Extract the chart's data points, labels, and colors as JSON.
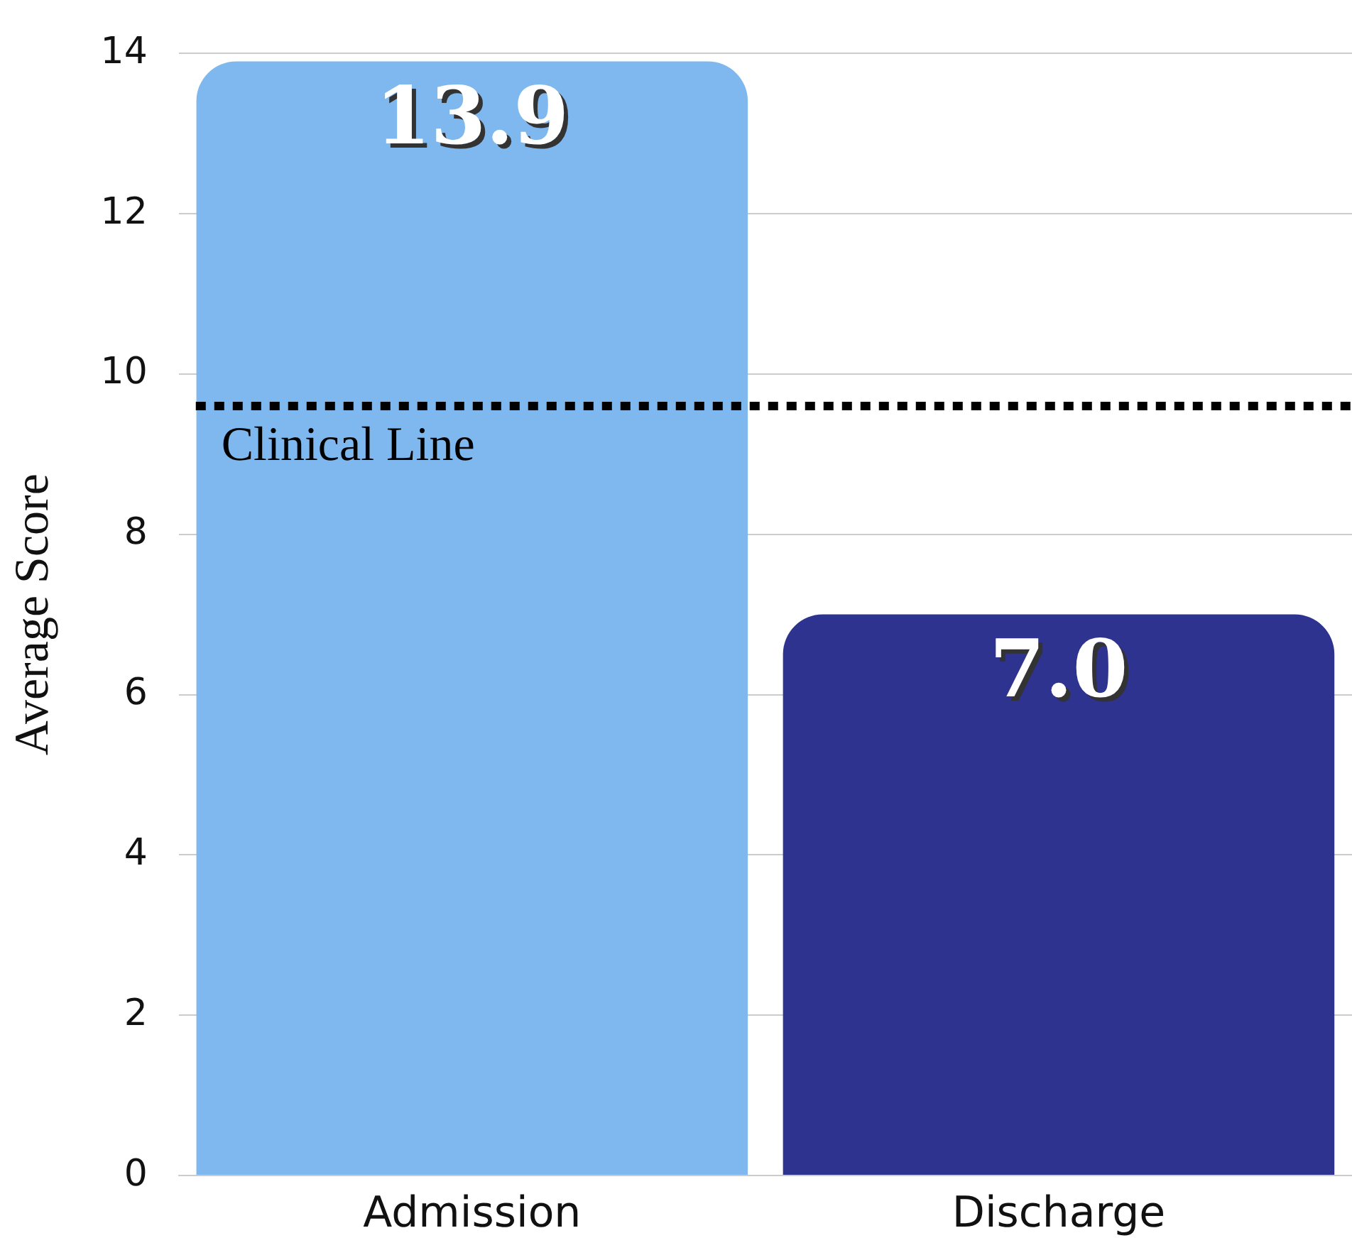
{
  "chart_data": {
    "type": "bar",
    "ylabel": "Average Score",
    "categories": [
      "Admission",
      "Discharge"
    ],
    "values": [
      13.9,
      7.0
    ],
    "colors": [
      "#7eb8ee",
      "#2e338f"
    ],
    "value_labels": [
      "13.9",
      "7.0"
    ],
    "ylim": [
      0,
      14
    ],
    "yticks": [
      0,
      2,
      4,
      6,
      8,
      10,
      12,
      14
    ],
    "grid": "y",
    "legend": false,
    "ref_lines": [
      {
        "axis": "y",
        "value": 9.6,
        "label": "Clinical Line",
        "color": "#000000",
        "line_style": "dotted"
      }
    ]
  }
}
